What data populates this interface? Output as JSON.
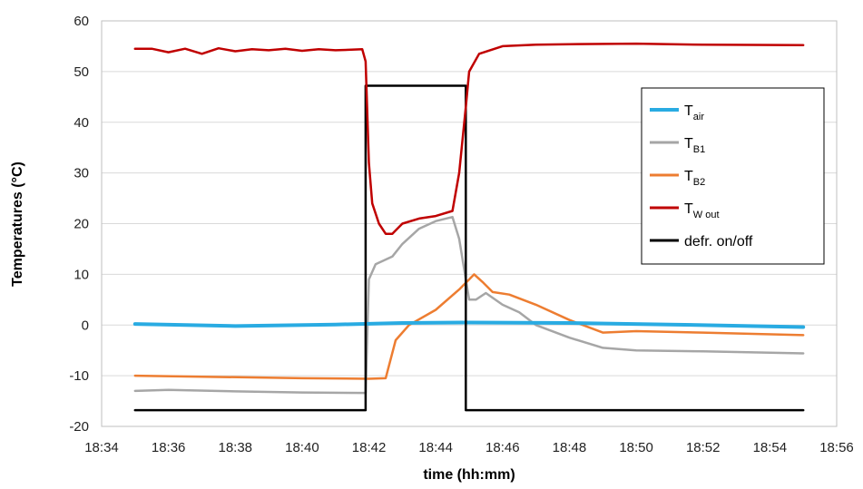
{
  "chart_data": {
    "type": "line",
    "xlabel": "time (hh:mm)",
    "ylabel": "Temperatures (°C)",
    "xlim": [
      "18:34",
      "18:56"
    ],
    "ylim": [
      -20,
      60
    ],
    "x_ticks": [
      "18:34",
      "18:36",
      "18:38",
      "18:40",
      "18:42",
      "18:44",
      "18:46",
      "18:48",
      "18:50",
      "18:52",
      "18:54",
      "18:56"
    ],
    "y_ticks": [
      -20,
      -10,
      0,
      10,
      20,
      30,
      40,
      50,
      60
    ],
    "grid": "horizontal",
    "legend_position": "right",
    "series": [
      {
        "name": "T_air",
        "legend_main": "T",
        "legend_sub": "air",
        "color": "#29abe2",
        "points": [
          [
            "18:35",
            0.2
          ],
          [
            "18:38",
            -0.2
          ],
          [
            "18:41",
            0.1
          ],
          [
            "18:43",
            0.4
          ],
          [
            "18:45",
            0.5
          ],
          [
            "18:48",
            0.4
          ],
          [
            "18:51",
            0.1
          ],
          [
            "18:55",
            -0.4
          ]
        ]
      },
      {
        "name": "T_B1",
        "legend_main": "T",
        "legend_sub": "B1",
        "color": "#a6a6a6",
        "points": [
          [
            "18:35",
            -13
          ],
          [
            "18:36",
            -12.8
          ],
          [
            "18:38",
            -13.1
          ],
          [
            "18:40",
            -13.3
          ],
          [
            "18:41.9",
            -13.4
          ],
          [
            "18:42",
            9
          ],
          [
            "18:42.2",
            12
          ],
          [
            "18:42.7",
            13.5
          ],
          [
            "18:43",
            16
          ],
          [
            "18:43.5",
            19
          ],
          [
            "18:44",
            20.5
          ],
          [
            "18:44.5",
            21.3
          ],
          [
            "18:44.7",
            17
          ],
          [
            "18:45",
            5
          ],
          [
            "18:45.2",
            5
          ],
          [
            "18:45.5",
            6.3
          ],
          [
            "18:46",
            4
          ],
          [
            "18:46.5",
            2.5
          ],
          [
            "18:47",
            0
          ],
          [
            "18:48",
            -2.5
          ],
          [
            "18:49",
            -4.5
          ],
          [
            "18:50",
            -5
          ],
          [
            "18:52",
            -5.2
          ],
          [
            "18:55",
            -5.6
          ]
        ]
      },
      {
        "name": "T_B2",
        "legend_main": "T",
        "legend_sub": "B2",
        "color": "#ed7d31",
        "points": [
          [
            "18:35",
            -10
          ],
          [
            "18:37",
            -10.2
          ],
          [
            "18:40",
            -10.5
          ],
          [
            "18:42",
            -10.6
          ],
          [
            "18:42.5",
            -10.5
          ],
          [
            "18:42.8",
            -3
          ],
          [
            "18:43.2",
            0
          ],
          [
            "18:44",
            3
          ],
          [
            "18:44.7",
            7
          ],
          [
            "18:45",
            9
          ],
          [
            "18:45.15",
            10
          ],
          [
            "18:45.4",
            8.5
          ],
          [
            "18:45.7",
            6.5
          ],
          [
            "18:46.2",
            6
          ],
          [
            "18:47",
            4
          ],
          [
            "18:48",
            1
          ],
          [
            "18:49",
            -1.5
          ],
          [
            "18:50",
            -1.2
          ],
          [
            "18:52",
            -1.5
          ],
          [
            "18:55",
            -2
          ]
        ]
      },
      {
        "name": "T_W out",
        "legend_main": "T",
        "legend_sub": "W out",
        "color": "#c00000",
        "points": [
          [
            "18:35",
            54.5
          ],
          [
            "18:35.5",
            54.5
          ],
          [
            "18:36",
            53.8
          ],
          [
            "18:36.5",
            54.5
          ],
          [
            "18:37",
            53.5
          ],
          [
            "18:37.5",
            54.6
          ],
          [
            "18:38",
            54
          ],
          [
            "18:38.5",
            54.4
          ],
          [
            "18:39",
            54.2
          ],
          [
            "18:39.5",
            54.5
          ],
          [
            "18:40",
            54.1
          ],
          [
            "18:40.5",
            54.4
          ],
          [
            "18:41",
            54.2
          ],
          [
            "18:41.8",
            54.4
          ],
          [
            "18:41.9",
            52
          ],
          [
            "18:42",
            32
          ],
          [
            "18:42.1",
            24
          ],
          [
            "18:42.3",
            20
          ],
          [
            "18:42.5",
            18
          ],
          [
            "18:42.7",
            18
          ],
          [
            "18:43",
            20
          ],
          [
            "18:43.5",
            21
          ],
          [
            "18:44",
            21.5
          ],
          [
            "18:44.5",
            22.5
          ],
          [
            "18:44.7",
            30
          ],
          [
            "18:44.9",
            43
          ],
          [
            "18:45",
            50
          ],
          [
            "18:45.3",
            53.5
          ],
          [
            "18:46",
            55
          ],
          [
            "18:47",
            55.3
          ],
          [
            "18:48",
            55.4
          ],
          [
            "18:50",
            55.5
          ],
          [
            "18:52",
            55.3
          ],
          [
            "18:55",
            55.2
          ]
        ]
      },
      {
        "name": "defr. on/off",
        "legend_main": "defr. on/off",
        "legend_sub": "",
        "color": "#000000",
        "points": [
          [
            "18:35",
            -16.8
          ],
          [
            "18:41.9",
            -16.8
          ],
          [
            "18:41.9",
            47.2
          ],
          [
            "18:44.9",
            47.2
          ],
          [
            "18:44.9",
            -16.8
          ],
          [
            "18:55",
            -16.8
          ]
        ]
      }
    ]
  }
}
